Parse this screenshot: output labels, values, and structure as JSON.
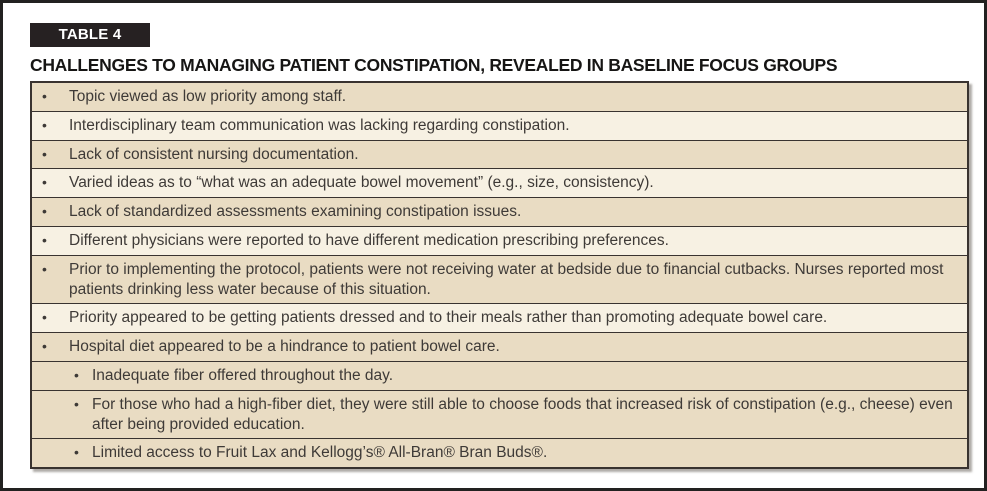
{
  "header": {
    "tag": "TABLE 4",
    "title": "CHALLENGES TO MANAGING PATIENT CONSTIPATION, REVEALED IN BASELINE FOCUS GROUPS"
  },
  "colors": {
    "row_tan": "#e9dcc3",
    "row_cream": "#f7f1e3",
    "border": "#393330",
    "text": "#3e3a37",
    "tag_background": "#262122",
    "tag_text": "#ffffff"
  },
  "bullet_glyph": "•",
  "table": {
    "rows": [
      {
        "level": 1,
        "shade": "tan",
        "text": "Topic viewed as low priority among staff."
      },
      {
        "level": 1,
        "shade": "cream",
        "text": "Interdisciplinary team communication was lacking regarding constipation."
      },
      {
        "level": 1,
        "shade": "tan",
        "text": "Lack of consistent nursing documentation."
      },
      {
        "level": 1,
        "shade": "cream",
        "text": "Varied ideas as to “what was an adequate bowel movement” (e.g., size, consistency)."
      },
      {
        "level": 1,
        "shade": "tan",
        "text": "Lack of standardized assessments examining constipation issues."
      },
      {
        "level": 1,
        "shade": "cream",
        "text": "Different physicians were reported to have different medication prescribing preferences."
      },
      {
        "level": 1,
        "shade": "tan",
        "text": "Prior to implementing the protocol, patients were not receiving water at bedside due to financial cutbacks. Nurses reported most patients drinking less water because of this situation."
      },
      {
        "level": 1,
        "shade": "cream",
        "text": "Priority appeared to be getting patients dressed and to their meals rather than promoting adequate bowel care."
      },
      {
        "level": 1,
        "shade": "tan",
        "text": "Hospital diet appeared to be a hindrance to patient bowel care."
      },
      {
        "level": 2,
        "shade": "tan",
        "text": "Inadequate fiber offered throughout the day."
      },
      {
        "level": 2,
        "shade": "tan",
        "text": "For those who had a high-fiber diet, they were still able to choose foods that increased risk of constipation (e.g., cheese) even after being provided education."
      },
      {
        "level": 2,
        "shade": "tan",
        "text": "Limited access to Fruit Lax and Kellogg’s® All-Bran® Bran Buds®."
      }
    ]
  }
}
